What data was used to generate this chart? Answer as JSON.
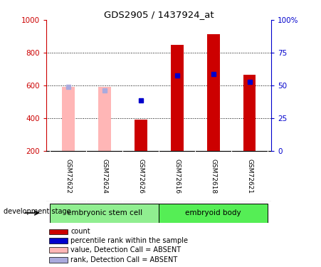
{
  "title": "GDS2905 / 1437924_at",
  "samples": [
    "GSM72622",
    "GSM72624",
    "GSM72626",
    "GSM72616",
    "GSM72618",
    "GSM72621"
  ],
  "group1_name": "embryonic stem cell",
  "group2_name": "embryoid body",
  "group1_color": "#90EE90",
  "group2_color": "#55EE55",
  "bar_values": [
    null,
    null,
    390,
    850,
    915,
    665
  ],
  "bar_color_present": "#CC0000",
  "bar_color_absent": "#FFB6B6",
  "pink_bar_heights": [
    590,
    590,
    null,
    null,
    null,
    null
  ],
  "blue_rank_present": [
    null,
    null,
    510,
    660,
    670,
    620
  ],
  "blue_rank_absent": [
    590,
    570,
    null,
    null,
    null,
    null
  ],
  "blue_color_present": "#0000CC",
  "blue_color_absent": "#AAAADD",
  "ylim_left": [
    200,
    1000
  ],
  "ylim_right": [
    0,
    100
  ],
  "yticks_left": [
    200,
    400,
    600,
    800,
    1000
  ],
  "yticks_right": [
    0,
    25,
    50,
    75,
    100
  ],
  "grid_values": [
    400,
    600,
    800
  ],
  "legend_items": [
    {
      "label": "count",
      "color": "#CC0000"
    },
    {
      "label": "percentile rank within the sample",
      "color": "#0000CC"
    },
    {
      "label": "value, Detection Call = ABSENT",
      "color": "#FFB6B6"
    },
    {
      "label": "rank, Detection Call = ABSENT",
      "color": "#AAAADD"
    }
  ],
  "dev_stage_label": "development stage",
  "background_color": "#FFFFFF",
  "tick_area_bg": "#CCCCCC",
  "bar_width": 0.35
}
